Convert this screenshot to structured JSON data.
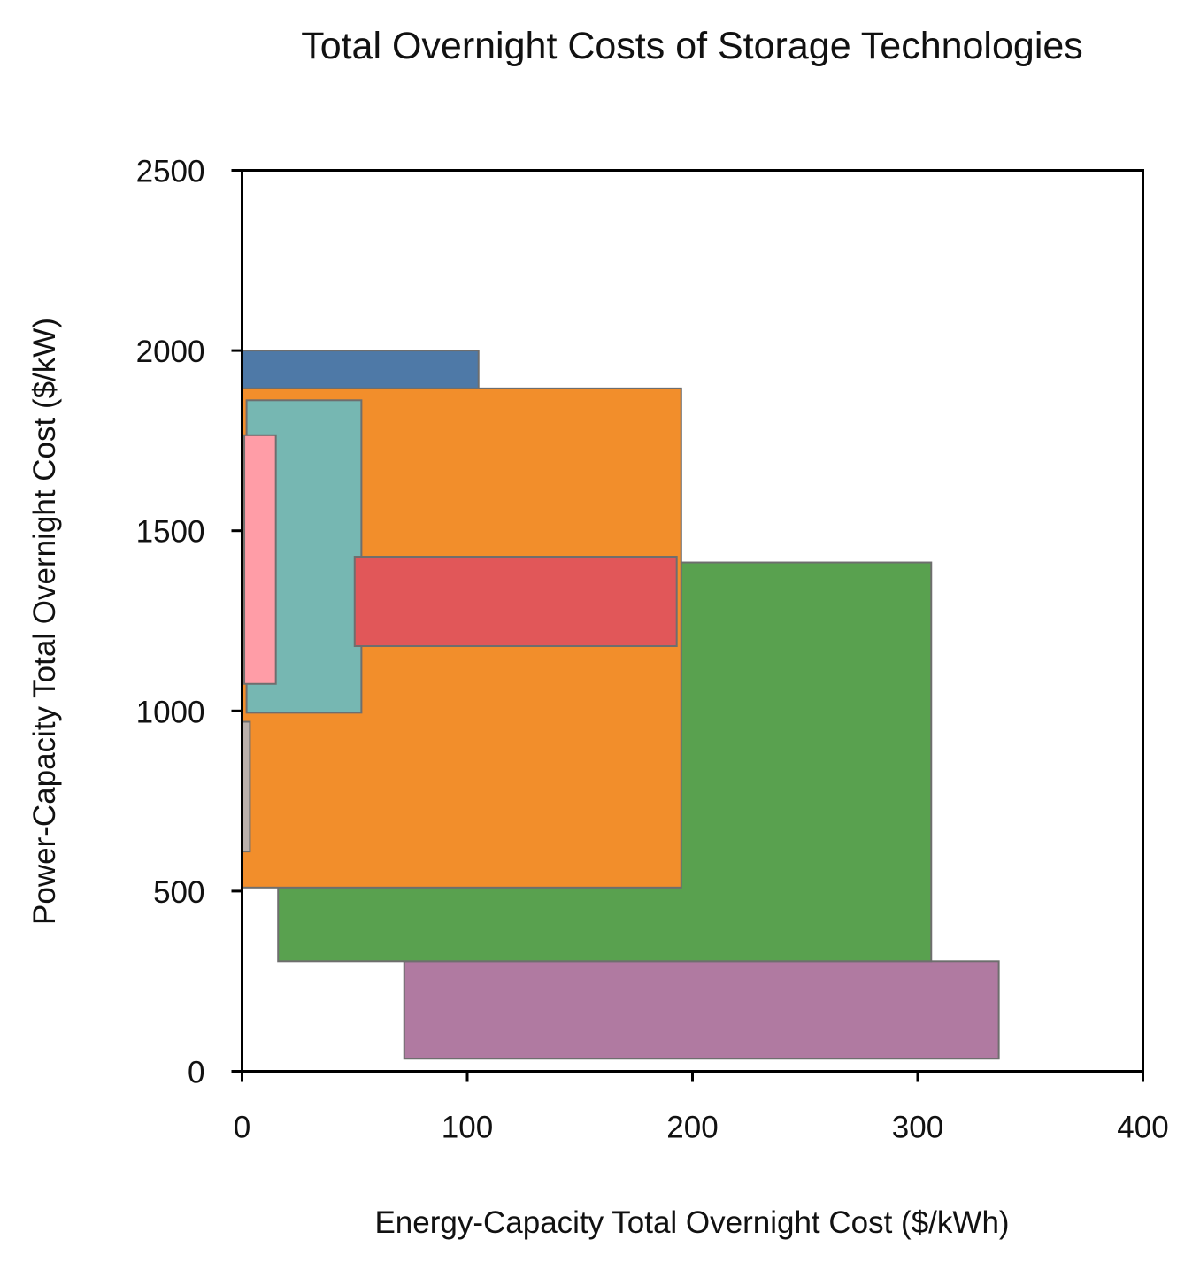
{
  "chart_data": {
    "type": "rectangle-range",
    "title": "Total Overnight Costs of Storage Technologies",
    "xlabel": "Energy-Capacity Total Overnight Cost ($/kWh)",
    "ylabel": "Power-Capacity Total Overnight Cost ($/kW)",
    "xlim": [
      0,
      400
    ],
    "ylim": [
      0,
      2500
    ],
    "xticks": [
      0,
      100,
      200,
      300,
      400
    ],
    "yticks": [
      0,
      500,
      1000,
      1500,
      2000,
      2500
    ],
    "grid": false,
    "legend": "none",
    "series": [
      {
        "x": [
          72,
          336
        ],
        "y": [
          35,
          305
        ],
        "color": "#b07aa1"
      },
      {
        "x": [
          16,
          306
        ],
        "y": [
          305,
          1412
        ],
        "color": "#59a14f"
      },
      {
        "x": [
          0,
          105
        ],
        "y": [
          970,
          2000
        ],
        "color": "#4e79a7"
      },
      {
        "x": [
          0,
          195
        ],
        "y": [
          510,
          1895
        ],
        "color": "#f28e2b"
      },
      {
        "x": [
          2,
          53
        ],
        "y": [
          995,
          1862
        ],
        "color": "#76b7b2"
      },
      {
        "x": [
          1,
          15
        ],
        "y": [
          1075,
          1765
        ],
        "color": "#ff9da7"
      },
      {
        "x": [
          50,
          193
        ],
        "y": [
          1180,
          1428
        ],
        "color": "#e15759"
      },
      {
        "x": [
          0,
          3.5
        ],
        "y": [
          610,
          970
        ],
        "color": "#bab0ac"
      }
    ]
  }
}
